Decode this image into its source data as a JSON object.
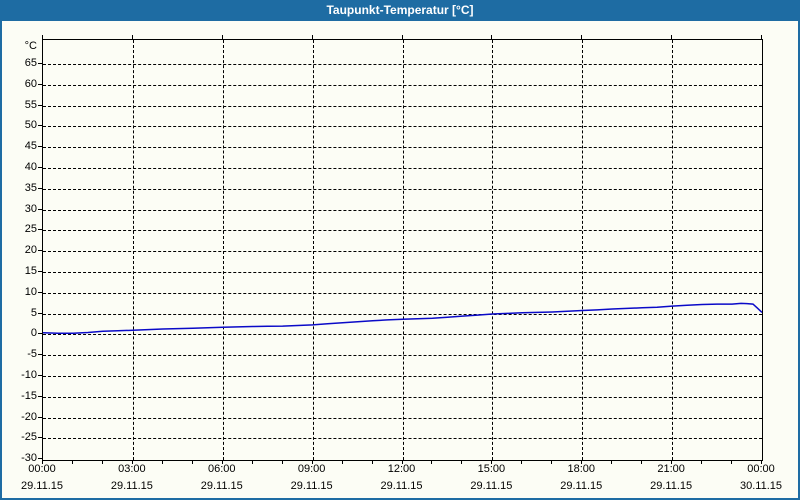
{
  "window": {
    "title": "Taupunkt-Temperatur [°C]"
  },
  "colors": {
    "titlebar_bg": "#1e6ca3",
    "titlebar_fg": "#ffffff",
    "frame": "#1e6ca3",
    "content_bg": "#fcfdf5",
    "grid": "#000000",
    "axis": "#000000",
    "label": "#000000",
    "series_line": "#0a0ac8"
  },
  "chart_data": {
    "type": "line",
    "title": "Taupunkt-Temperatur [°C]",
    "ylabel_unit": "°C",
    "xlim": [
      0,
      24
    ],
    "ylim": [
      -30.2,
      70.8
    ],
    "grid": "dashed",
    "legend": "none",
    "yticks": [
      65,
      60,
      55,
      50,
      45,
      40,
      35,
      30,
      25,
      20,
      15,
      10,
      5,
      0,
      -5,
      -10,
      -15,
      -20,
      -25,
      -30
    ],
    "x_gridlines_hours": [
      3,
      6,
      9,
      12,
      15,
      18,
      21
    ],
    "x_minor_tick_every_hours": 1,
    "x_ticks": [
      {
        "time": "00:00",
        "date": "29.11.15"
      },
      {
        "time": "03:00",
        "date": "29.11.15"
      },
      {
        "time": "06:00",
        "date": "29.11.15"
      },
      {
        "time": "09:00",
        "date": "29.11.15"
      },
      {
        "time": "12:00",
        "date": "29.11.15"
      },
      {
        "time": "15:00",
        "date": "29.11.15"
      },
      {
        "time": "18:00",
        "date": "29.11.15"
      },
      {
        "time": "21:00",
        "date": "29.11.15"
      },
      {
        "time": "00:00",
        "date": "30.11.15"
      }
    ],
    "series": [
      {
        "name": "Taupunkt-Temperatur",
        "color": "#0a0ac8",
        "points": [
          [
            0,
            0.4
          ],
          [
            0.5,
            0.3
          ],
          [
            1,
            0.3
          ],
          [
            1.5,
            0.45
          ],
          [
            2,
            0.75
          ],
          [
            2.5,
            0.9
          ],
          [
            3,
            1.0
          ],
          [
            3.5,
            1.15
          ],
          [
            4,
            1.3
          ],
          [
            4.5,
            1.4
          ],
          [
            5,
            1.5
          ],
          [
            5.5,
            1.6
          ],
          [
            6,
            1.7
          ],
          [
            6.5,
            1.8
          ],
          [
            7,
            1.9
          ],
          [
            7.5,
            1.95
          ],
          [
            8,
            2.0
          ],
          [
            8.5,
            2.15
          ],
          [
            9,
            2.3
          ],
          [
            9.5,
            2.55
          ],
          [
            10,
            2.8
          ],
          [
            10.5,
            3.05
          ],
          [
            11,
            3.3
          ],
          [
            11.5,
            3.5
          ],
          [
            12,
            3.65
          ],
          [
            12.5,
            3.75
          ],
          [
            13,
            3.9
          ],
          [
            13.5,
            4.15
          ],
          [
            14,
            4.4
          ],
          [
            14.5,
            4.65
          ],
          [
            15,
            4.9
          ],
          [
            15.5,
            5.05
          ],
          [
            16,
            5.2
          ],
          [
            16.5,
            5.3
          ],
          [
            17,
            5.4
          ],
          [
            17.5,
            5.55
          ],
          [
            18,
            5.75
          ],
          [
            18.5,
            5.9
          ],
          [
            19,
            6.1
          ],
          [
            19.5,
            6.25
          ],
          [
            20,
            6.4
          ],
          [
            20.5,
            6.55
          ],
          [
            21,
            6.8
          ],
          [
            21.5,
            7.0
          ],
          [
            22,
            7.2
          ],
          [
            22.5,
            7.3
          ],
          [
            23,
            7.3
          ],
          [
            23.3,
            7.45
          ],
          [
            23.5,
            7.4
          ],
          [
            23.7,
            7.3
          ],
          [
            23.85,
            6.3
          ],
          [
            24,
            5.3
          ]
        ]
      }
    ]
  }
}
